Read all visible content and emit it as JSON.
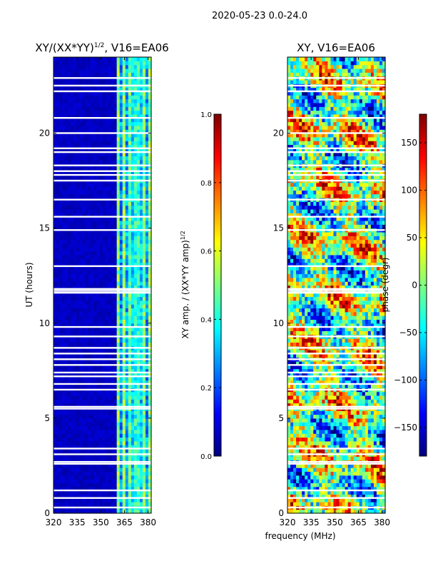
{
  "figure": {
    "suptitle": "2020-05-23 0.0-24.0"
  },
  "colors": {
    "jet": [
      "#00007f",
      "#0000ff",
      "#007fff",
      "#00ffff",
      "#7fff7f",
      "#ffff00",
      "#ff7f00",
      "#ff0000",
      "#7f0000"
    ]
  },
  "chart_data": [
    {
      "type": "heatmap",
      "title": "XY/(XX*YY)",
      "title_sup": "1/2",
      "title_tail": ", V16=EA06",
      "ylabel": "UT (hours)",
      "xlabel": "",
      "xlim": [
        320,
        382
      ],
      "ylim": [
        0,
        24
      ],
      "xticks": [
        "320",
        "335",
        "350",
        "365",
        "380"
      ],
      "xtick_values": [
        320,
        335,
        350,
        365,
        380
      ],
      "yticks": [
        "0",
        "5",
        "10",
        "15",
        "20"
      ],
      "ytick_values": [
        0,
        5,
        10,
        15,
        20
      ],
      "colorbar": {
        "label": "XY amp. / (XX*YY amp)",
        "label_sup": "1/2",
        "range": [
          0.0,
          1.0
        ],
        "ticks": [
          "0.0",
          "0.2",
          "0.4",
          "0.6",
          "0.8",
          "1.0"
        ],
        "tick_values": [
          0.0,
          0.2,
          0.4,
          0.6,
          0.8,
          1.0
        ]
      },
      "active_band_mhz": [
        360,
        382
      ],
      "gap_hours": [
        0.3,
        0.8,
        1.2,
        2.6,
        2.7,
        3.1,
        3.4,
        5.5,
        5.6,
        6.5,
        6.8,
        7.2,
        7.4,
        7.8,
        8.1,
        8.4,
        8.7,
        9.3,
        9.8,
        11.6,
        11.7,
        11.8,
        13.0,
        14.9,
        15.6,
        16.5,
        17.5,
        17.8,
        18.0,
        18.3,
        19.0,
        19.2,
        20.0,
        20.8,
        22.2,
        22.5,
        22.9
      ]
    },
    {
      "type": "heatmap",
      "title": "XY, V16=EA06",
      "xlabel": "frequency (MHz)",
      "ylabel": "",
      "xlim": [
        320,
        382
      ],
      "ylim": [
        0,
        24
      ],
      "xticks": [
        "320",
        "335",
        "350",
        "365",
        "380"
      ],
      "xtick_values": [
        320,
        335,
        350,
        365,
        380
      ],
      "yticks": [
        "0",
        "5",
        "10",
        "15",
        "20"
      ],
      "ytick_values": [
        0,
        5,
        10,
        15,
        20
      ],
      "colorbar": {
        "label": "phase (degr)",
        "range": [
          -180,
          180
        ],
        "ticks": [
          "−150",
          "−100",
          "−50",
          "0",
          "50",
          "100",
          "150"
        ],
        "tick_values": [
          -150,
          -100,
          -50,
          0,
          50,
          100,
          150
        ]
      },
      "gap_hours": [
        0.3,
        0.8,
        1.2,
        2.6,
        2.7,
        3.1,
        3.4,
        5.5,
        5.6,
        6.5,
        6.8,
        7.2,
        7.4,
        7.8,
        8.1,
        8.4,
        8.7,
        9.3,
        9.8,
        11.6,
        11.7,
        11.8,
        13.0,
        14.9,
        15.6,
        16.5,
        17.5,
        17.8,
        18.0,
        18.3,
        19.0,
        19.2,
        20.0,
        20.8,
        22.2,
        22.5,
        22.9
      ]
    }
  ]
}
